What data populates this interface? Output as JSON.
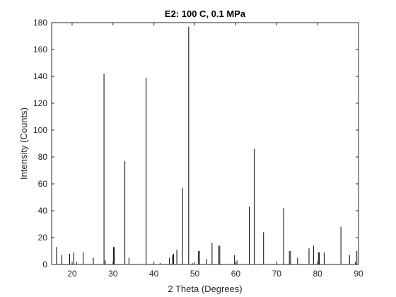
{
  "chart_data": {
    "type": "bar",
    "title": "E2: 100 C, 0.1 MPa",
    "xlabel": "2 Theta (Degrees)",
    "ylabel": "Intensity (Counts)",
    "xlim": [
      15,
      90
    ],
    "ylim": [
      0,
      180
    ],
    "xticks": [
      20,
      30,
      40,
      50,
      60,
      70,
      80,
      90
    ],
    "yticks": [
      0,
      20,
      40,
      60,
      80,
      100,
      120,
      140,
      160,
      180
    ],
    "grid": false,
    "box": true,
    "colors": {
      "bars": "#000000",
      "axes": "#262626",
      "background": "#ffffff"
    },
    "x": [
      16.2,
      17.5,
      19.4,
      20.4,
      21.1,
      22.7,
      25.2,
      27.8,
      28.1,
      30.1,
      30.3,
      32.9,
      33.9,
      38.1,
      41.5,
      43.8,
      44.5,
      44.8,
      45.6,
      47.0,
      48.5,
      49.4,
      50.9,
      51.1,
      52.9,
      54.2,
      55.8,
      56.1,
      59.7,
      60.3,
      63.3,
      64.5,
      66.8,
      71.7,
      73.1,
      73.4,
      75.1,
      77.9,
      79.0,
      80.2,
      80.4,
      81.6,
      85.7,
      87.8,
      89.2,
      89.6
    ],
    "values": [
      13,
      7,
      8,
      9,
      2,
      9,
      5,
      142,
      3,
      13,
      13,
      77,
      5,
      139,
      1,
      5,
      7,
      8,
      11,
      57,
      177,
      1,
      10,
      10,
      4,
      16,
      14,
      14,
      7,
      3,
      43,
      86,
      24,
      42,
      10,
      10,
      5,
      12,
      14,
      9,
      9,
      9,
      28,
      7,
      2,
      10
    ]
  }
}
